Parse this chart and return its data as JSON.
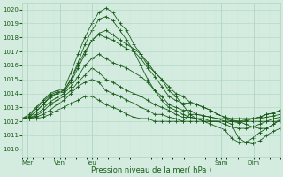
{
  "xlabel": "Pression niveau de la mer( hPa )",
  "ylim": [
    1009.5,
    1020.5
  ],
  "yticks": [
    1010,
    1011,
    1012,
    1013,
    1014,
    1015,
    1016,
    1017,
    1018,
    1019,
    1020
  ],
  "bg_color": "#d4ece0",
  "grid_color_major": "#b0d4c0",
  "grid_color_minor": "#c4e4d4",
  "line_color": "#1a5c1a",
  "xlim": [
    0,
    48
  ],
  "xtick_positions": [
    1,
    7,
    13,
    25,
    37,
    43
  ],
  "xtick_labels": [
    "Mer",
    "Ven",
    "Jeu",
    "",
    "Sam",
    "Dim"
  ],
  "day_major_positions": [
    1,
    7,
    13,
    25,
    37,
    43
  ],
  "series": [
    [
      1012.2,
      1012.5,
      1013.0,
      1013.5,
      1014.0,
      1014.2,
      1014.3,
      1015.5,
      1016.8,
      1018.0,
      1019.0,
      1019.8,
      1020.1,
      1019.8,
      1019.0,
      1018.5,
      1017.5,
      1016.8,
      1016.0,
      1015.5,
      1015.0,
      1014.5,
      1014.0,
      1013.8,
      1013.4,
      1013.2,
      1013.0,
      1012.8,
      1012.5,
      1012.3,
      1012.1,
      1012.0,
      1011.8,
      1011.6,
      1011.5,
      1011.5,
      1011.8,
      1012.2
    ],
    [
      1012.2,
      1012.4,
      1012.9,
      1013.4,
      1013.9,
      1014.1,
      1014.2,
      1015.0,
      1016.2,
      1017.5,
      1018.5,
      1019.3,
      1019.5,
      1019.2,
      1018.5,
      1017.8,
      1017.0,
      1016.0,
      1015.0,
      1014.2,
      1013.5,
      1013.0,
      1012.8,
      1012.5,
      1012.3,
      1012.2,
      1012.0,
      1011.8,
      1011.6,
      1011.4,
      1010.8,
      1010.5,
      1010.5,
      1010.8,
      1011.2,
      1011.5,
      1011.8,
      1012.1
    ],
    [
      1012.2,
      1012.3,
      1012.7,
      1013.2,
      1013.7,
      1014.0,
      1014.1,
      1014.8,
      1015.8,
      1016.8,
      1017.8,
      1018.3,
      1018.5,
      1018.2,
      1017.8,
      1017.5,
      1017.2,
      1016.8,
      1016.2,
      1015.5,
      1015.0,
      1014.2,
      1013.8,
      1013.2,
      1012.5,
      1012.2,
      1012.0,
      1012.0,
      1012.0,
      1012.0,
      1012.0,
      1012.0,
      1012.1,
      1012.2,
      1012.3,
      1012.5,
      1012.6,
      1012.8
    ],
    [
      1012.2,
      1012.3,
      1012.7,
      1013.2,
      1013.8,
      1014.0,
      1014.2,
      1015.0,
      1016.0,
      1017.0,
      1017.8,
      1018.2,
      1018.0,
      1017.8,
      1017.5,
      1017.2,
      1017.0,
      1016.5,
      1015.8,
      1015.2,
      1014.5,
      1013.8,
      1013.5,
      1013.3,
      1013.3,
      1013.2,
      1013.0,
      1012.8,
      1012.5,
      1012.3,
      1012.2,
      1012.2,
      1012.2,
      1012.2,
      1012.2,
      1012.3,
      1012.4,
      1012.5
    ],
    [
      1012.2,
      1012.2,
      1012.5,
      1012.9,
      1013.4,
      1013.7,
      1014.0,
      1014.5,
      1015.2,
      1016.0,
      1016.5,
      1016.8,
      1016.5,
      1016.2,
      1016.0,
      1015.8,
      1015.5,
      1015.2,
      1014.8,
      1014.2,
      1013.8,
      1013.2,
      1013.0,
      1012.8,
      1012.8,
      1012.5,
      1012.4,
      1012.3,
      1012.2,
      1012.2,
      1012.0,
      1011.9,
      1012.0,
      1012.2,
      1012.3,
      1012.5,
      1012.6,
      1012.8
    ],
    [
      1012.2,
      1012.2,
      1012.4,
      1012.7,
      1013.2,
      1013.5,
      1013.8,
      1014.2,
      1014.8,
      1015.3,
      1015.8,
      1015.5,
      1015.0,
      1014.8,
      1014.5,
      1014.2,
      1014.0,
      1013.8,
      1013.5,
      1013.2,
      1013.0,
      1012.8,
      1012.5,
      1012.3,
      1012.3,
      1012.2,
      1012.2,
      1012.0,
      1012.0,
      1011.8,
      1011.6,
      1011.5,
      1011.5,
      1011.6,
      1011.8,
      1012.0,
      1012.2,
      1012.3
    ],
    [
      1012.2,
      1012.2,
      1012.3,
      1012.5,
      1012.8,
      1013.2,
      1013.5,
      1014.0,
      1014.5,
      1014.8,
      1015.0,
      1014.8,
      1014.2,
      1014.0,
      1013.8,
      1013.5,
      1013.3,
      1013.0,
      1012.8,
      1012.5,
      1012.5,
      1012.3,
      1012.2,
      1012.0,
      1012.5,
      1012.5,
      1012.4,
      1012.3,
      1012.2,
      1012.0,
      1011.8,
      1010.8,
      1010.5,
      1010.4,
      1010.6,
      1011.0,
      1011.3,
      1011.5
    ],
    [
      1012.2,
      1012.2,
      1012.2,
      1012.3,
      1012.5,
      1012.8,
      1013.0,
      1013.3,
      1013.5,
      1013.8,
      1013.8,
      1013.5,
      1013.2,
      1013.0,
      1012.8,
      1012.5,
      1012.3,
      1012.2,
      1012.2,
      1012.0,
      1012.0,
      1012.0,
      1012.0,
      1012.0,
      1012.0,
      1012.0,
      1012.0,
      1012.0,
      1012.0,
      1012.0,
      1012.0,
      1012.0,
      1012.0,
      1012.0,
      1012.0,
      1012.0,
      1012.0,
      1012.0
    ]
  ]
}
